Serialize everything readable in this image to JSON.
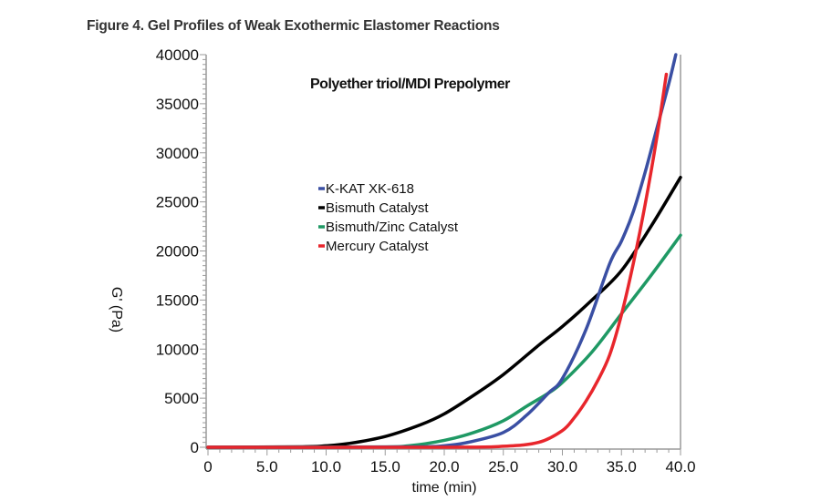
{
  "figure_title": "Figure 4. Gel Profiles of Weak Exothermic Elastomer Reactions",
  "chart_data": {
    "type": "line",
    "title": "Polyether triol/MDI Prepolymer",
    "xlabel": "time (min)",
    "ylabel": "G' (Pa)",
    "xlim": [
      0,
      40
    ],
    "ylim": [
      0,
      40000
    ],
    "x_ticks": [
      "0",
      "5.0",
      "10.0",
      "15.0",
      "20.0",
      "25.0",
      "30.0",
      "35.0",
      "40.0"
    ],
    "y_ticks": [
      "0",
      "5000",
      "10000",
      "15000",
      "20000",
      "25000",
      "30000",
      "35000",
      "40000"
    ],
    "grid": false,
    "legend_position": "upper-left-center",
    "series": [
      {
        "name": "K-KAT XK-618",
        "color": "#3a4fa3",
        "x": [
          0,
          10,
          18,
          20,
          22,
          25,
          27,
          28.8,
          30,
          32,
          34,
          35,
          36,
          37,
          38,
          39,
          39.6
        ],
        "y": [
          0,
          0,
          50,
          150,
          500,
          1500,
          3300,
          5500,
          7000,
          12000,
          18700,
          21000,
          24000,
          28000,
          32500,
          37000,
          40000
        ]
      },
      {
        "name": "Bismuth Catalyst",
        "color": "#000000",
        "x": [
          0,
          8,
          10,
          12,
          15,
          18,
          20,
          22.5,
          25,
          28,
          30,
          32.5,
          35,
          37.5,
          40
        ],
        "y": [
          0,
          50,
          150,
          400,
          1100,
          2300,
          3400,
          5300,
          7400,
          10400,
          12300,
          15000,
          18000,
          22500,
          27500
        ]
      },
      {
        "name": "Bismuth/Zinc Catalyst",
        "color": "#1f9964",
        "x": [
          0,
          14,
          17,
          20,
          22.5,
          25,
          27,
          28.8,
          30,
          32.5,
          35,
          37.5,
          40
        ],
        "y": [
          0,
          30,
          150,
          700,
          1500,
          2700,
          4200,
          5500,
          6600,
          9700,
          13600,
          17500,
          21600
        ]
      },
      {
        "name": "Mercury Catalyst",
        "color": "#e8262c",
        "x": [
          0,
          20,
          25,
          28,
          30,
          31,
          32,
          33,
          34,
          35,
          36,
          37,
          38,
          38.8
        ],
        "y": [
          0,
          0,
          100,
          500,
          1700,
          3000,
          4700,
          6800,
          9400,
          13500,
          18700,
          24700,
          31600,
          38000
        ]
      }
    ]
  }
}
